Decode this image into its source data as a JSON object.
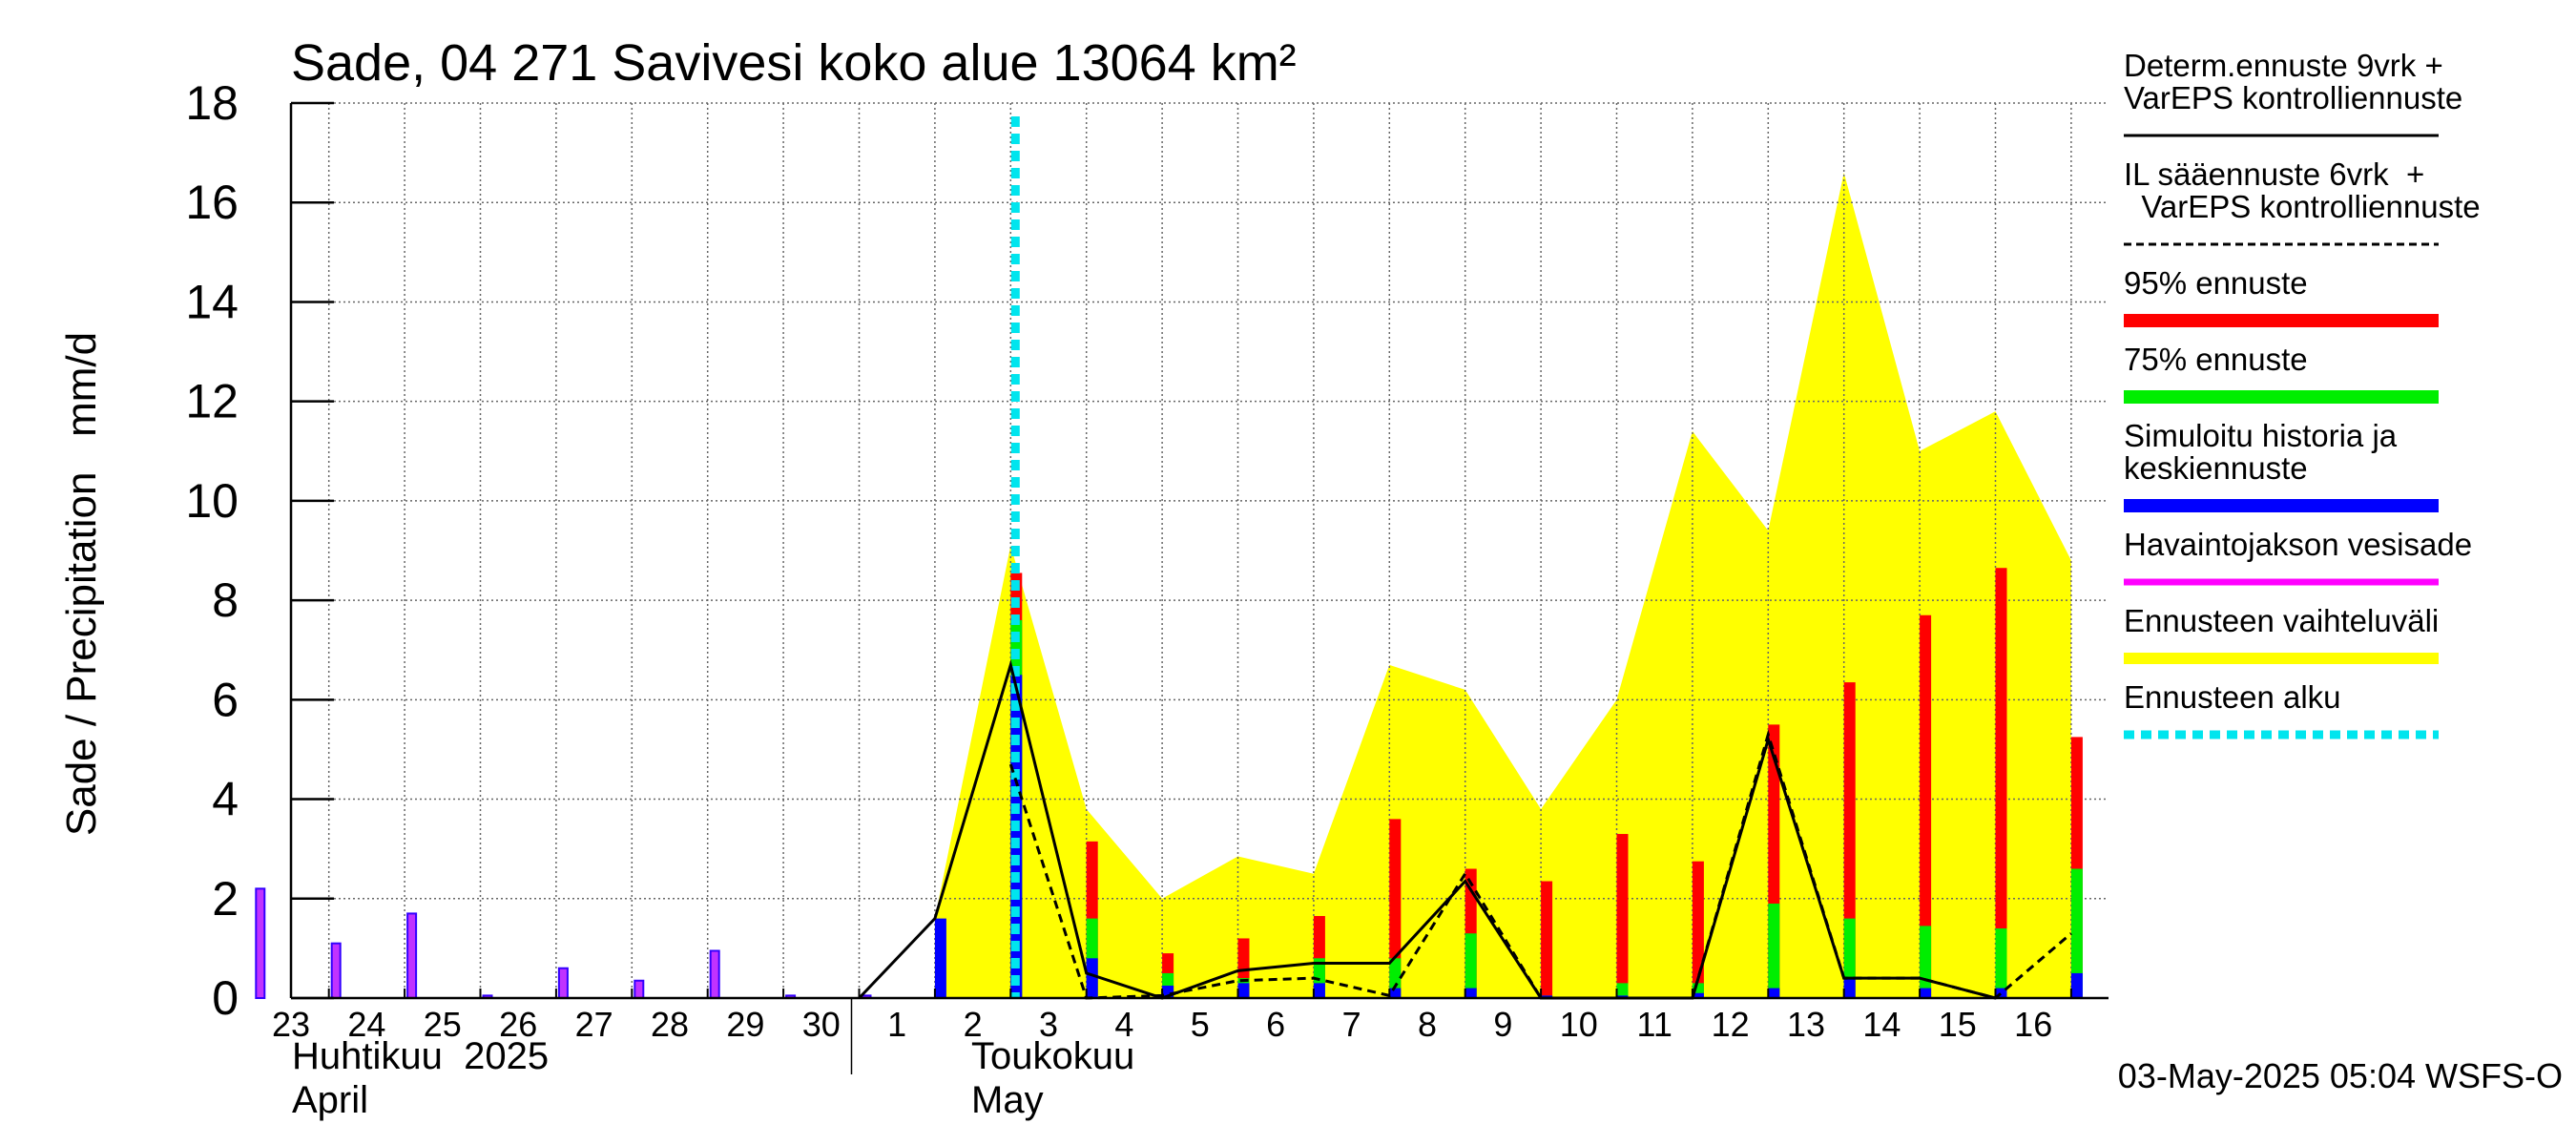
{
  "chart_data": {
    "type": "bar",
    "title": "Sade, 04 271 Savivesi koko alue 13064 km²",
    "ylabel": "Sade / Precipitation   mm/d",
    "ylim": [
      0,
      18
    ],
    "yticks": [
      "0",
      "2",
      "4",
      "6",
      "8",
      "10",
      "12",
      "14",
      "16",
      "18"
    ],
    "xticks": [
      "23",
      "24",
      "25",
      "26",
      "27",
      "28",
      "29",
      "30",
      "1",
      "2",
      "3",
      "4",
      "5",
      "6",
      "7",
      "8",
      "9",
      "10",
      "11",
      "12",
      "13",
      "14",
      "15",
      "16"
    ],
    "month_labels": {
      "april_fi": "Huhtikuu  2025",
      "april_en": "April",
      "may_fi": "Toukokuu",
      "may_en": "May"
    },
    "grid": true,
    "forecast_start_day": 10,
    "observed_precip": [
      2.2,
      1.1,
      1.7,
      0.05,
      0.6,
      0.35,
      0.95,
      0.05,
      0.05
    ],
    "simulated_history_and_mean": [
      null,
      null,
      null,
      null,
      null,
      null,
      null,
      null,
      null,
      1.6,
      6.5,
      0.8,
      0.25,
      0.3,
      0.3,
      0.2,
      0.2,
      0.05,
      0.05,
      0.1,
      0.2,
      0.4,
      0.2,
      0.2,
      0.5
    ],
    "percentile_75": [
      null,
      null,
      null,
      null,
      null,
      null,
      null,
      null,
      null,
      null,
      7.6,
      1.6,
      0.5,
      0.4,
      0.8,
      0.8,
      1.3,
      0.05,
      0.3,
      0.3,
      1.9,
      1.6,
      1.45,
      1.4,
      2.6
    ],
    "percentile_95": [
      null,
      null,
      null,
      null,
      null,
      null,
      null,
      null,
      null,
      null,
      8.55,
      3.15,
      0.9,
      1.2,
      1.65,
      3.6,
      2.6,
      2.35,
      3.3,
      2.75,
      5.5,
      6.35,
      7.7,
      8.65,
      5.25
    ],
    "ensemble_range_upper": [
      null,
      null,
      null,
      null,
      null,
      null,
      null,
      null,
      null,
      1.6,
      9.1,
      3.8,
      2.0,
      2.85,
      2.5,
      6.7,
      6.2,
      3.8,
      6.0,
      11.4,
      9.4,
      16.6,
      11.0,
      11.8,
      8.8
    ],
    "determ_forecast_9d": [
      null,
      null,
      null,
      null,
      null,
      null,
      null,
      null,
      0.0,
      1.6,
      6.7,
      0.5,
      0.0,
      0.55,
      0.7,
      0.7,
      2.35,
      0.0,
      0.0,
      0.0,
      5.2,
      0.4,
      0.4,
      0.0,
      null
    ],
    "il_forecast_6d": [
      null,
      null,
      null,
      null,
      null,
      null,
      null,
      null,
      null,
      null,
      4.7,
      0.0,
      0.05,
      0.35,
      0.4,
      0.05,
      2.5,
      0.0,
      0.0,
      0.0,
      5.3,
      0.4,
      0.4,
      0.0,
      1.3
    ],
    "series": [
      {
        "name": "Determ.ennuste 9vrk +\nVarEPS kontrolliennuste",
        "color": "#000000",
        "style": "solid"
      },
      {
        "name": "IL sääennuste 6vrk  +\n  VarEPS kontrolliennuste",
        "color": "#000000",
        "style": "dashed"
      },
      {
        "name": "95% ennuste",
        "color": "#ff0000",
        "style": "bar"
      },
      {
        "name": "75% ennuste",
        "color": "#00ee00",
        "style": "bar"
      },
      {
        "name": "Simuloitu historia ja\nkeskiennuste",
        "color": "#0000ff",
        "style": "bar"
      },
      {
        "name": "Havaintojakson vesisade",
        "color": "#ff00ff",
        "style": "bar"
      },
      {
        "name": "Ennusteen vaihteluväli",
        "color": "#ffff00",
        "style": "area"
      },
      {
        "name": "Ennusteen alku",
        "color": "#00e5ee",
        "style": "dotted"
      }
    ],
    "footer": "03-May-2025 05:04 WSFS-O"
  }
}
